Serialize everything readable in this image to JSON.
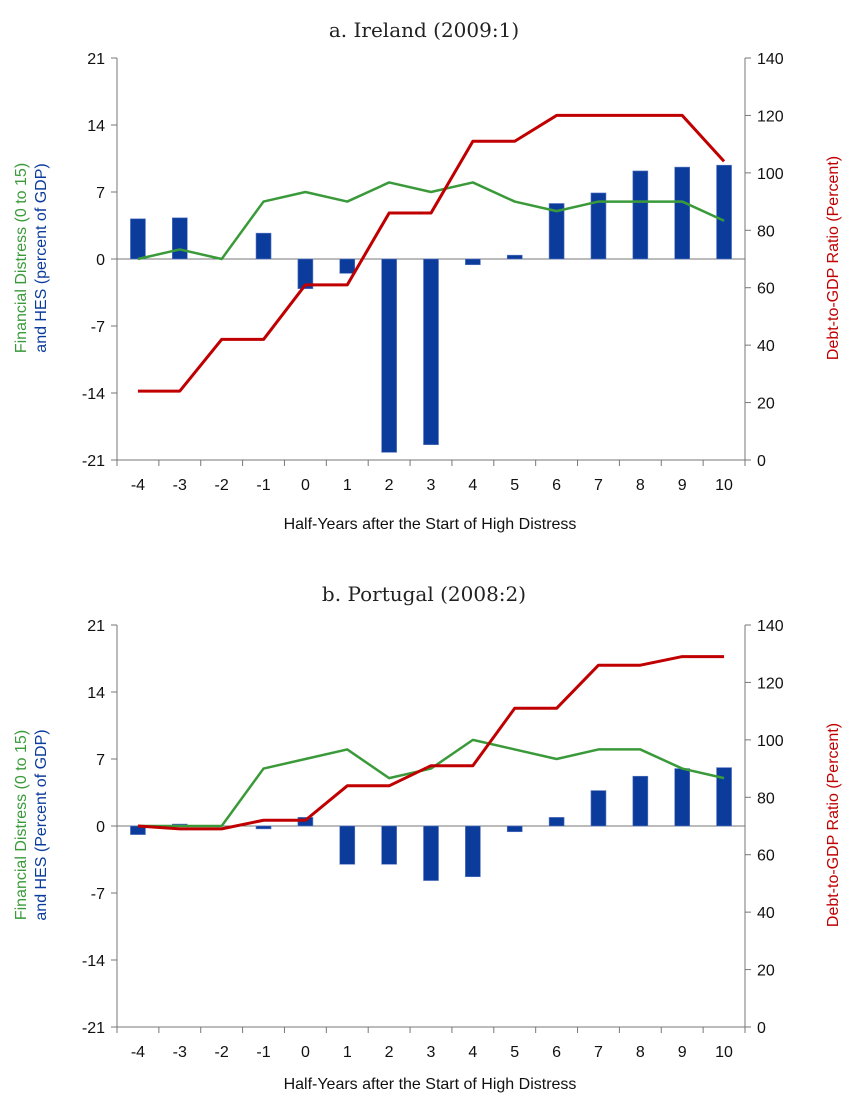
{
  "chart_data": [
    {
      "type": "bar+line",
      "title": "a. Ireland (2009:1)",
      "xlabel": "Half-Years after the Start of High Distress",
      "ylabel_left_line1": "Financial Distress (0 to 15)",
      "ylabel_left_line2": "and HES (percent of GDP)",
      "ylabel_right": "Debt-to-GDP Ratio (Percent)",
      "x": [
        -4,
        -3,
        -2,
        -1,
        0,
        1,
        2,
        3,
        4,
        5,
        6,
        7,
        8,
        9,
        10
      ],
      "ylim_left": [
        -21,
        21
      ],
      "yticks_left": [
        -21,
        -14,
        -7,
        0,
        7,
        14,
        21
      ],
      "ylim_right": [
        0,
        140
      ],
      "yticks_right": [
        0,
        20,
        40,
        60,
        80,
        100,
        120,
        140
      ],
      "colors": {
        "hes": "#0b3c9c",
        "distress": "#3a9a3a",
        "debt": "#c00000"
      },
      "series": [
        {
          "name": "HES",
          "kind": "bar",
          "axis": "left",
          "values": [
            4.2,
            4.3,
            0,
            2.7,
            -3.1,
            -1.5,
            -20.2,
            -19.4,
            -0.6,
            0.4,
            5.8,
            6.9,
            9.2,
            9.6,
            9.8
          ]
        },
        {
          "name": "Financial Distress",
          "kind": "line",
          "axis": "left",
          "values": [
            0,
            1,
            0,
            6,
            7,
            6,
            8,
            7,
            8,
            6,
            5,
            6,
            6,
            6,
            4
          ]
        },
        {
          "name": "Debt-to-GDP Ratio",
          "kind": "step",
          "axis": "right",
          "values": [
            24,
            24,
            42,
            42,
            61,
            61,
            86,
            86,
            111,
            111,
            120,
            120,
            120,
            120,
            104
          ]
        }
      ]
    },
    {
      "type": "bar+line",
      "title": "b. Portugal (2008:2)",
      "xlabel": "Half-Years after the Start of High Distress",
      "ylabel_left_line1": "Financial Distress (0 to 15)",
      "ylabel_left_line2": "and HES (Percent of GDP)",
      "ylabel_right": "Debt-to-GDP Ratio (Percent)",
      "x": [
        -4,
        -3,
        -2,
        -1,
        0,
        1,
        2,
        3,
        4,
        5,
        6,
        7,
        8,
        9,
        10
      ],
      "ylim_left": [
        -21,
        21
      ],
      "yticks_left": [
        -21,
        -14,
        -7,
        0,
        7,
        14,
        21
      ],
      "ylim_right": [
        0,
        140
      ],
      "yticks_right": [
        0,
        20,
        40,
        60,
        80,
        100,
        120,
        140
      ],
      "colors": {
        "hes": "#0b3c9c",
        "distress": "#3a9a3a",
        "debt": "#c00000"
      },
      "series": [
        {
          "name": "HES",
          "kind": "bar",
          "axis": "left",
          "values": [
            -0.9,
            0.2,
            0,
            -0.3,
            0.9,
            -4.0,
            -4.0,
            -5.7,
            -5.3,
            -0.6,
            0.9,
            3.7,
            5.2,
            6.0,
            6.1
          ]
        },
        {
          "name": "Financial Distress",
          "kind": "line",
          "axis": "left",
          "values": [
            0,
            0,
            0,
            6,
            7,
            8,
            5,
            6,
            9,
            8,
            7,
            8,
            8,
            6,
            5
          ]
        },
        {
          "name": "Debt-to-GDP Ratio",
          "kind": "step",
          "axis": "right",
          "values": [
            70,
            69,
            69,
            72,
            72,
            84,
            84,
            91,
            91,
            111,
            111,
            126,
            126,
            129,
            129
          ]
        }
      ]
    }
  ]
}
